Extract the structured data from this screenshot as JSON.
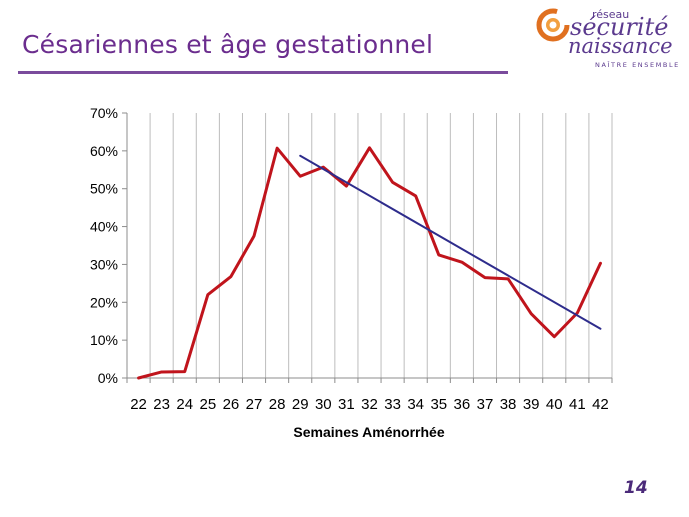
{
  "slide": {
    "title": "Césariennes et âge gestationnel",
    "page_number": "14"
  },
  "logo": {
    "line1": "réseau",
    "line2": "sécurité",
    "line3": "naissance",
    "tagline": "NAÎTRE ENSEMBLE",
    "colors": {
      "primary": "#5b3a8e",
      "accent": "#e07020"
    }
  },
  "chart_data": {
    "type": "line",
    "xlabel": "Semaines Aménorrhée",
    "ylabel": "",
    "categories": [
      "22",
      "23",
      "24",
      "25",
      "26",
      "27",
      "28",
      "29",
      "30",
      "31",
      "32",
      "33",
      "34",
      "35",
      "36",
      "37",
      "38",
      "39",
      "40",
      "41",
      "42"
    ],
    "ytick_labels": [
      "0%",
      "10%",
      "20%",
      "30%",
      "40%",
      "50%",
      "60%",
      "70%"
    ],
    "ylim": [
      0,
      0.7
    ],
    "grid": {
      "vertical": true,
      "horizontal": false
    },
    "legend": "none",
    "series": [
      {
        "color": "#c0141c",
        "values": [
          0.0,
          0.016,
          0.017,
          0.22,
          0.268,
          0.375,
          0.607,
          0.533,
          0.557,
          0.507,
          0.608,
          0.517,
          0.481,
          0.325,
          0.306,
          0.265,
          0.262,
          0.17,
          0.109,
          0.172,
          0.303
        ]
      },
      {
        "color": "#2e2c8c",
        "kind": "trend",
        "x": [
          "29",
          "42"
        ],
        "values": [
          0.587,
          0.13
        ]
      }
    ]
  }
}
